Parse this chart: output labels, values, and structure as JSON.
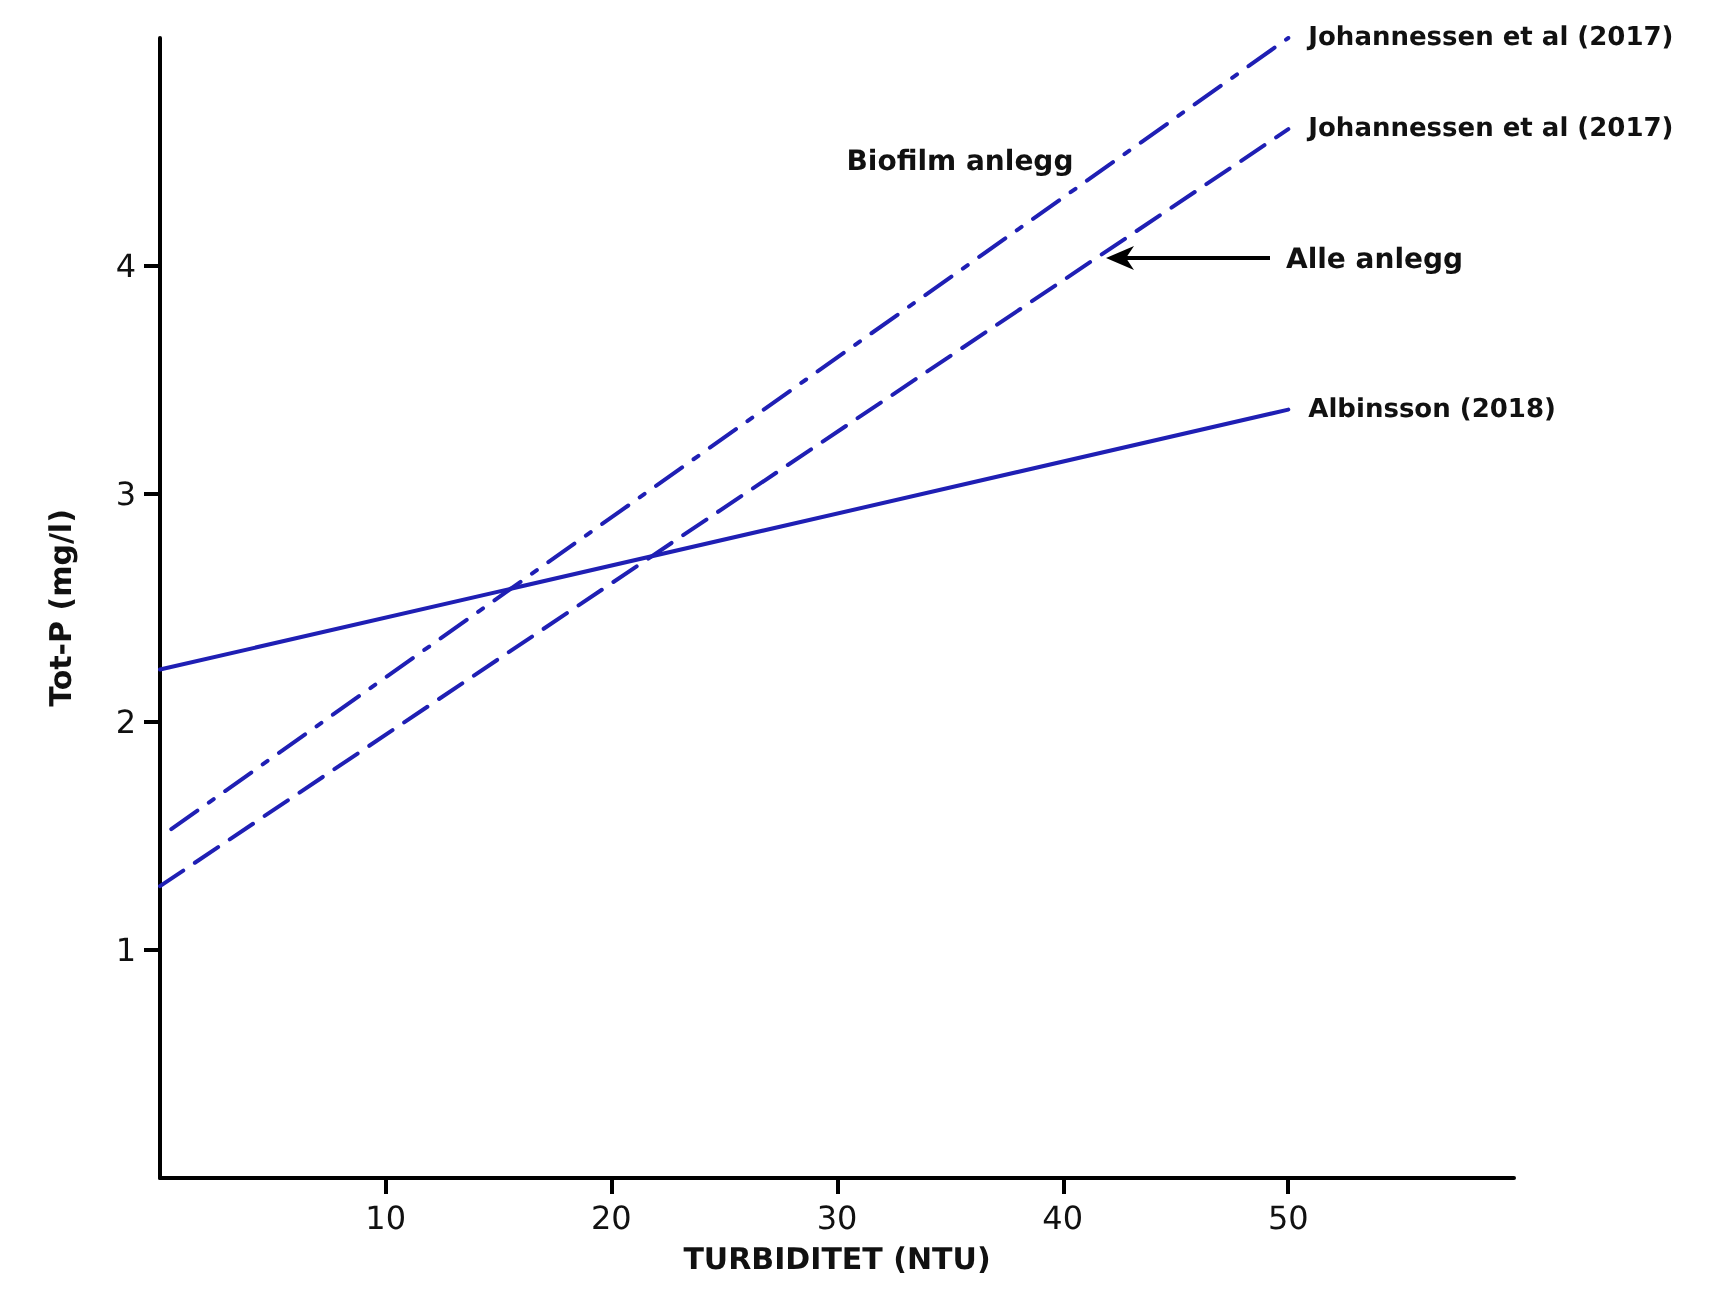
{
  "chart_data": {
    "type": "line",
    "xlabel": "TURBIDITET (NTU)",
    "ylabel": "Tot-P (mg/l)",
    "xlim": [
      0,
      60
    ],
    "xticks": [
      10,
      20,
      30,
      40,
      50
    ],
    "ylim": [
      0,
      5
    ],
    "yticks": [
      1,
      2,
      3,
      4
    ],
    "grid": false,
    "legend": false,
    "marker": "none",
    "series": [
      {
        "name": "Johannessen et al (2017)",
        "color": "#1f1fb4",
        "line_style": "dashdot",
        "x": [
          0.5,
          50
        ],
        "values": [
          1.53,
          5.0
        ]
      },
      {
        "name": "Johannessen et al (2017)",
        "color": "#1f1fb4",
        "line_style": "dashed",
        "x": [
          0,
          50
        ],
        "values": [
          1.28,
          4.6
        ]
      },
      {
        "name": "Albinsson (2018)",
        "color": "#1f1fb4",
        "line_style": "solid",
        "x": [
          0,
          50
        ],
        "values": [
          2.23,
          3.37
        ]
      }
    ],
    "annotations": [
      "Biofilm anlegg",
      "Alle anlegg"
    ]
  }
}
